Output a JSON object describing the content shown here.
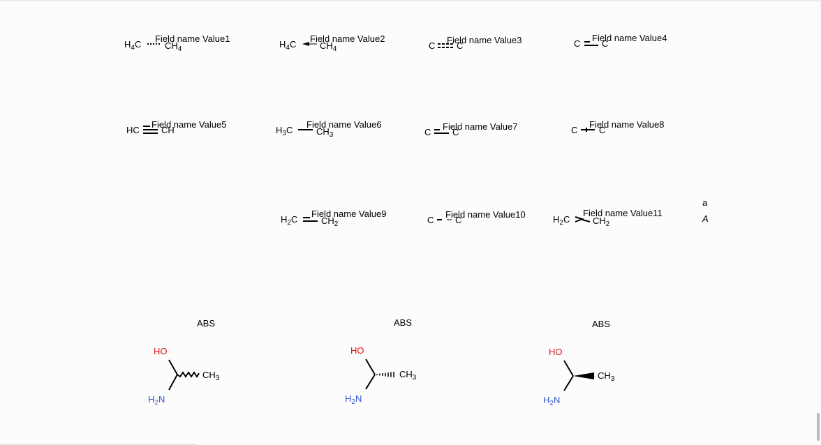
{
  "fields": [
    "Field name Value1",
    "Field name Value2",
    "Field name Value3",
    "Field name Value4",
    "Field name Value5",
    "Field name Value6",
    "Field name Value7",
    "Field name Value8",
    "Field name Value9",
    "Field name Value10",
    "Field name Value11"
  ],
  "molecules": {
    "m1": {
      "left_main": "H",
      "left_sub": "4",
      "left_tail": "C",
      "right_main": "CH",
      "right_sub": "4"
    },
    "m2": {
      "left_main": "H",
      "left_sub": "4",
      "left_tail": "C",
      "right_main": "CH",
      "right_sub": "4"
    },
    "m3": {
      "left": "C",
      "right": "C"
    },
    "m4": {
      "left": "C",
      "right": "C"
    },
    "m5": {
      "left": "HC",
      "right": "CH"
    },
    "m6": {
      "left_main": "H",
      "left_sub": "3",
      "left_tail": "C",
      "right_main": "CH",
      "right_sub": "3"
    },
    "m7": {
      "left": "C",
      "right": "C"
    },
    "m8": {
      "left": "C",
      "right": "C"
    },
    "m9": {
      "left_main": "H",
      "left_sub": "2",
      "left_tail": "C",
      "right_main": "CH",
      "right_sub": "2"
    },
    "m10": {
      "left": "C",
      "right": "C"
    },
    "m11": {
      "left_main": "H",
      "left_sub": "2",
      "left_tail": "C",
      "right_main": "CH",
      "right_sub": "2"
    }
  },
  "legend": {
    "lower": "a",
    "upper": "A"
  },
  "stereo": {
    "abs_label": "ABS",
    "ho_label": "HO",
    "ch3_main": "CH",
    "ch3_sub": "3",
    "nh2_h": "H",
    "nh2_sub": "2",
    "nh2_n": "N",
    "colors": {
      "ho": "#e01010",
      "nh2": "#3355cc"
    }
  }
}
